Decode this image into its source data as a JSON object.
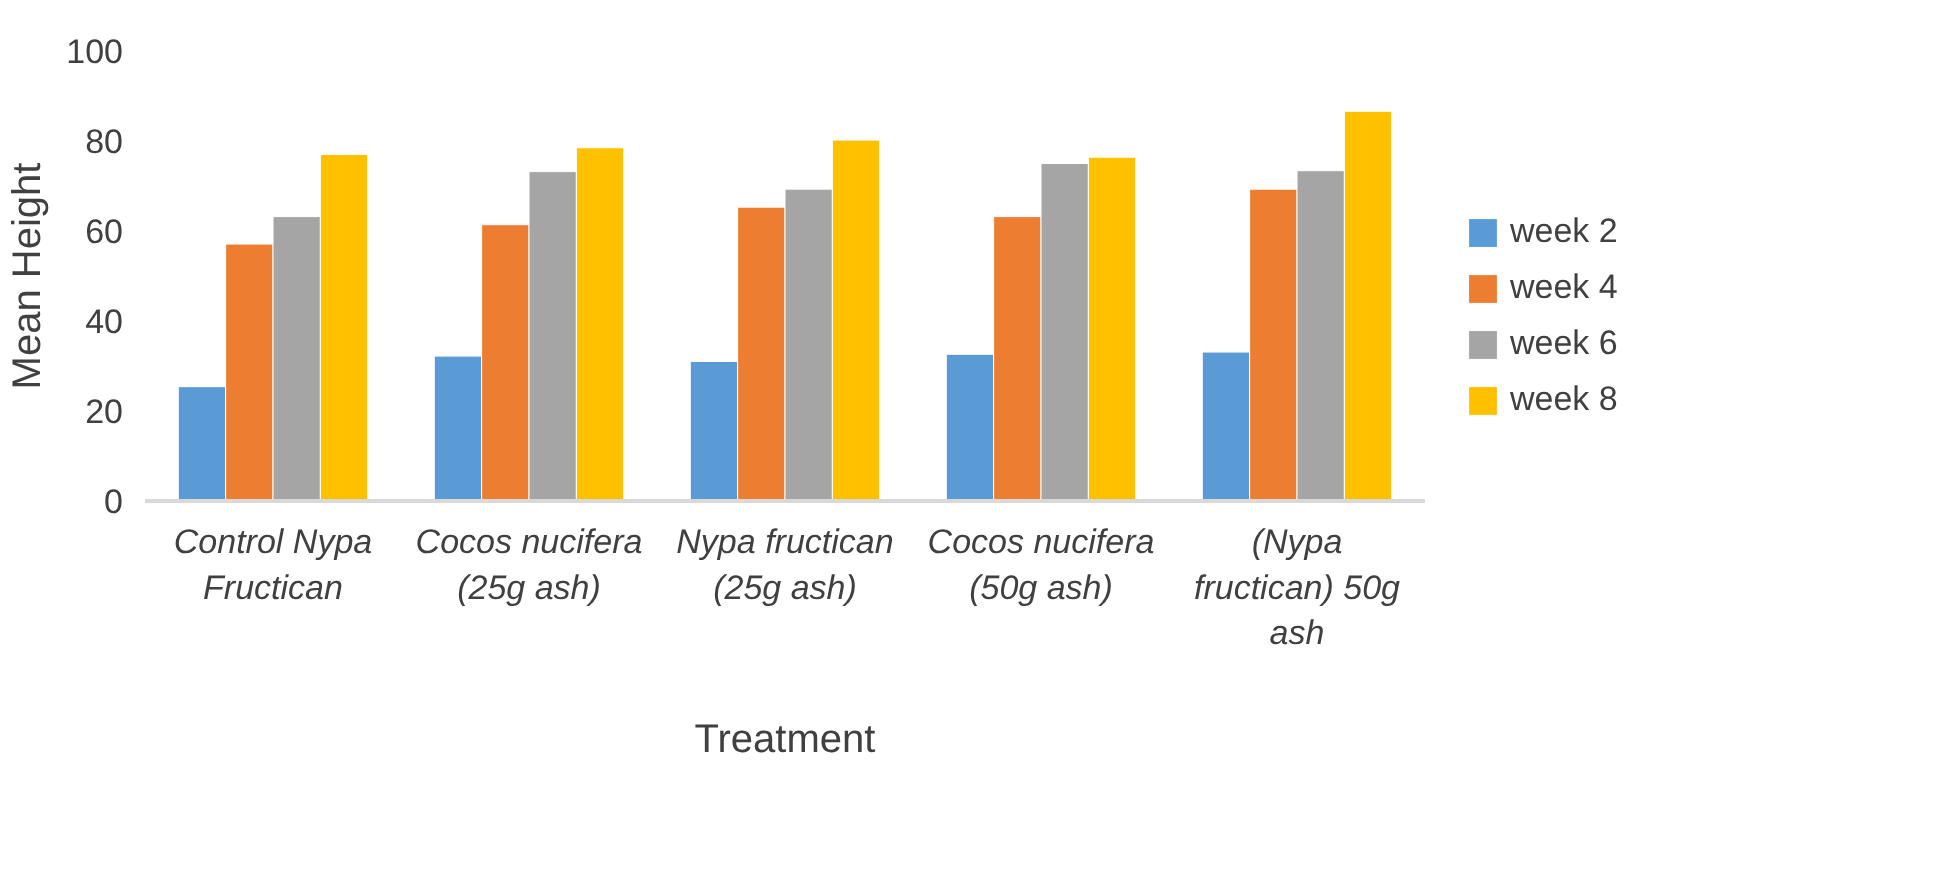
{
  "chart_data": {
    "type": "bar",
    "xlabel": "Treatment",
    "ylabel": "Mean Height",
    "categories": [
      "Control Nypa Fructican",
      "Cocos nucifera (25g ash)",
      "Nypa fructican (25g ash)",
      "Cocos nucifera (50g ash)",
      "(Nypa fructican) 50g ash"
    ],
    "series": [
      {
        "name": "week 2",
        "color": "#5b9bd5",
        "values": [
          25.4,
          32.2,
          31,
          32.6,
          33.1
        ]
      },
      {
        "name": "week 4",
        "color": "#ed7d31",
        "values": [
          57.1,
          61.4,
          65.3,
          63.2,
          69.3
        ]
      },
      {
        "name": "week 6",
        "color": "#a5a5a5",
        "values": [
          63.2,
          73.2,
          69.3,
          75,
          73.4
        ]
      },
      {
        "name": "week 8",
        "color": "#ffc000",
        "values": [
          77,
          78.5,
          80.2,
          76.4,
          86.6
        ]
      }
    ],
    "ylim": [
      0,
      100
    ],
    "yticks": [
      0,
      20,
      40,
      60,
      80,
      100
    ],
    "grid": false,
    "legend": "right"
  }
}
